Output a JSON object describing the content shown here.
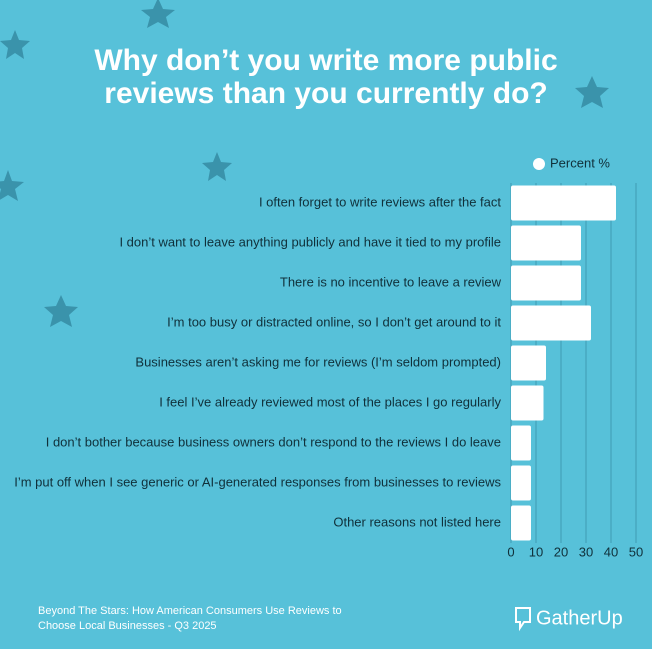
{
  "chart_data": {
    "type": "bar",
    "orientation": "horizontal",
    "title": [
      "Why don’t you write more public",
      "reviews than you currently do?"
    ],
    "legend": "Percent %",
    "categories": [
      "I often forget to write reviews after the fact",
      "I don’t want to leave anything publicly and have it tied to my profile",
      "There is no incentive to leave a review",
      "I’m too busy or distracted online, so I don’t get around to it",
      "Businesses aren’t asking me for reviews (I’m seldom prompted)",
      "I feel I’ve already reviewed most of the places I go regularly",
      "I don’t bother because business owners don’t respond to the reviews I do leave",
      "I’m put off when I see generic or AI-generated responses from businesses to reviews",
      "Other reasons not listed here"
    ],
    "values": [
      42,
      28,
      28,
      32,
      14,
      13,
      8,
      8,
      8
    ],
    "color": "#ffffff",
    "xlim": [
      0,
      50
    ],
    "xticks": [
      0,
      10,
      20,
      30,
      40,
      50
    ],
    "grid": true,
    "footer": [
      "Beyond The Stars: How American Consumers Use Reviews to",
      "Choose Local Businesses - Q3 2025"
    ],
    "logo": "GatherUp"
  }
}
